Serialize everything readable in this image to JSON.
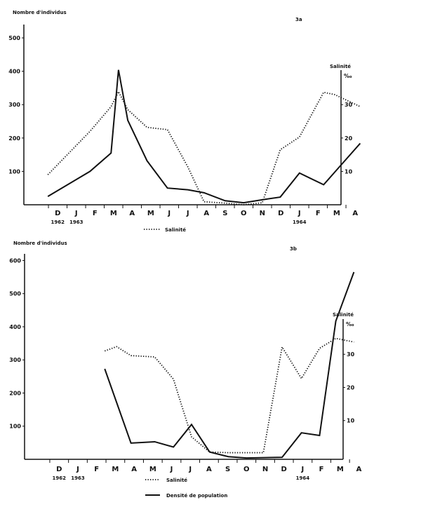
{
  "chart_data": [
    {
      "type": "line",
      "panel_label": "3a",
      "ylabel": "Nombre d'individus",
      "y2label": "Salinité",
      "y2unit": "‰",
      "ylim": [
        0,
        540
      ],
      "y2lim": [
        0,
        54
      ],
      "yticks": [
        100,
        200,
        300,
        400,
        500
      ],
      "y2ticks": [
        10,
        20,
        30
      ],
      "xticks": [
        "D",
        "J",
        "F",
        "M",
        "A",
        "M",
        "J",
        "J",
        "A",
        "S",
        "O",
        "N",
        "D",
        "J",
        "F",
        "M",
        "A"
      ],
      "xtick_years": [
        {
          "at": 0,
          "label": "1962"
        },
        {
          "at": 1,
          "label": "1963"
        },
        {
          "at": 13,
          "label": "1964"
        }
      ],
      "legend": [
        {
          "style": "dotted",
          "label": "Salinité"
        }
      ],
      "series": [
        {
          "name": "Densité de population",
          "axis": "left",
          "style": "solid",
          "x": [
            "1962-11-29",
            "1963-02-07",
            "1963-03-11",
            "1963-03-23",
            "1963-04-08",
            "1963-05-09",
            "1963-06-12",
            "1963-07-15",
            "1963-08-11",
            "1963-09-15",
            "1963-10-15",
            "1963-11-15",
            "1963-12-14",
            "1964-01-15",
            "1964-02-24",
            "1964-03-12",
            "1964-04-23"
          ],
          "y": [
            25,
            100,
            155,
            404,
            253,
            132,
            50,
            45,
            36,
            12,
            6,
            15,
            23,
            95,
            60,
            98,
            184
          ]
        },
        {
          "name": "Salinité",
          "axis": "right",
          "style": "dotted",
          "x": [
            "1962-11-29",
            "1963-02-07",
            "1963-03-11",
            "1963-03-23",
            "1963-04-08",
            "1963-05-09",
            "1963-06-12",
            "1963-07-15",
            "1963-08-11",
            "1963-09-15",
            "1963-10-15",
            "1963-11-15",
            "1963-12-14",
            "1964-01-15",
            "1964-02-24",
            "1964-03-12",
            "1964-04-23"
          ],
          "y": [
            9,
            22,
            29.4,
            33.9,
            28.5,
            23.2,
            22.5,
            11.3,
            0.9,
            0.5,
            0,
            0.6,
            16.5,
            20.3,
            33.7,
            33,
            29.4
          ]
        }
      ]
    },
    {
      "type": "line",
      "panel_label": "3b",
      "ylabel": "Nombre d'individus",
      "y2label": "Salinité",
      "y2unit": "‰",
      "ylim": [
        0,
        620
      ],
      "y2lim": [
        0,
        42
      ],
      "yticks": [
        100,
        200,
        300,
        400,
        500,
        600
      ],
      "y2ticks": [
        10,
        20,
        30
      ],
      "xticks": [
        "D",
        "J",
        "F",
        "M",
        "A",
        "M",
        "J",
        "J",
        "A",
        "S",
        "O",
        "N",
        "D",
        "J",
        "F",
        "M",
        "A"
      ],
      "xtick_years": [
        {
          "at": 0,
          "label": "1962"
        },
        {
          "at": 1,
          "label": "1963"
        },
        {
          "at": 13,
          "label": "1964"
        }
      ],
      "legend": [
        {
          "style": "dotted",
          "label": "Salinité"
        },
        {
          "style": "solid",
          "label": "Densité de population"
        }
      ],
      "series": [
        {
          "name": "Densité de population",
          "axis": "left",
          "style": "solid",
          "x": [
            "1963-02-28",
            "1963-04-10",
            "1963-05-18",
            "1963-06-18",
            "1963-07-17",
            "1963-08-16",
            "1963-09-16",
            "1963-10-15",
            "1963-12-12",
            "1964-01-13",
            "1964-02-12",
            "1964-03-08",
            "1964-04-07"
          ],
          "y": [
            273,
            49,
            53,
            37,
            105,
            22,
            8,
            4,
            6,
            80,
            72,
            417,
            565
          ]
        },
        {
          "name": "Salinité",
          "axis": "right",
          "style": "dotted",
          "x": [
            "1963-02-28",
            "1963-03-17",
            "1963-04-10",
            "1963-05-18",
            "1963-06-18",
            "1963-07-17",
            "1963-08-16",
            "1963-09-16",
            "1963-10-15",
            "1963-11-12",
            "1963-12-12",
            "1964-01-13",
            "1964-02-12",
            "1964-03-08",
            "1964-04-07"
          ],
          "y": [
            31,
            32.3,
            29.6,
            29.2,
            22.5,
            5.1,
            0.5,
            0.3,
            0.3,
            0.3,
            32.2,
            22.7,
            31.8,
            34.8,
            33.7
          ]
        }
      ]
    }
  ]
}
